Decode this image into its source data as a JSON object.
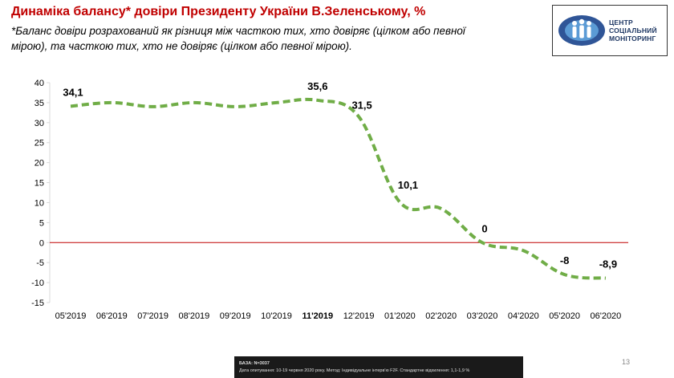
{
  "header": {
    "title": "Динаміка балансу* довіри Президенту України В.Зеленському, %",
    "subtitle": "*Баланс довіри розрахований як різниця між часткою тих, хто довіряє (цілком або певної мірою), та часткою тих, хто не довіряє (цілком або певної мірою)."
  },
  "logo": {
    "line1": "ЦЕНТР",
    "line2": "СОЦІАЛЬНИЙ",
    "line3": "МОНІТОРИНГ"
  },
  "chart_data": {
    "type": "line",
    "title": "",
    "xlabel": "",
    "ylabel": "",
    "categories": [
      "05'2019",
      "06'2019",
      "07'2019",
      "08'2019",
      "09'2019",
      "10'2019",
      "11'2019",
      "12'2019",
      "01'2020",
      "02'2020",
      "03'2020",
      "04'2020",
      "05'2020",
      "06'2020"
    ],
    "bold_category": "11'2019",
    "series": [
      {
        "values": [
          34.1,
          35,
          34,
          35,
          34,
          35,
          35.6,
          31.5,
          10.1,
          8.5,
          0,
          -2,
          -8,
          -8.9
        ],
        "color": "#70ad47",
        "style": "dashed"
      }
    ],
    "data_labels": [
      {
        "index": 0,
        "text": "34,1"
      },
      {
        "index": 6,
        "text": "35,6"
      },
      {
        "index": 7,
        "text": "31,5"
      },
      {
        "index": 8,
        "text": "10,1"
      },
      {
        "index": 10,
        "text": "0"
      },
      {
        "index": 12,
        "text": "-8"
      },
      {
        "index": 13,
        "text": "-8,9"
      }
    ],
    "yticks": [
      40,
      35,
      30,
      25,
      20,
      15,
      10,
      5,
      0,
      -5,
      -10,
      -15
    ],
    "ylim": [
      -15,
      40
    ],
    "zero_line_color": "#c00000",
    "grid": false,
    "legend": "none"
  },
  "footer": {
    "base": "БАЗА: N=3037",
    "details": "Дата опитування: 10-19 червня 2020 року. Метод: Індивідуальне інтерв'ю F2F. Стандартне відхилення: 1,1-1,9 %"
  },
  "page_number": "13"
}
